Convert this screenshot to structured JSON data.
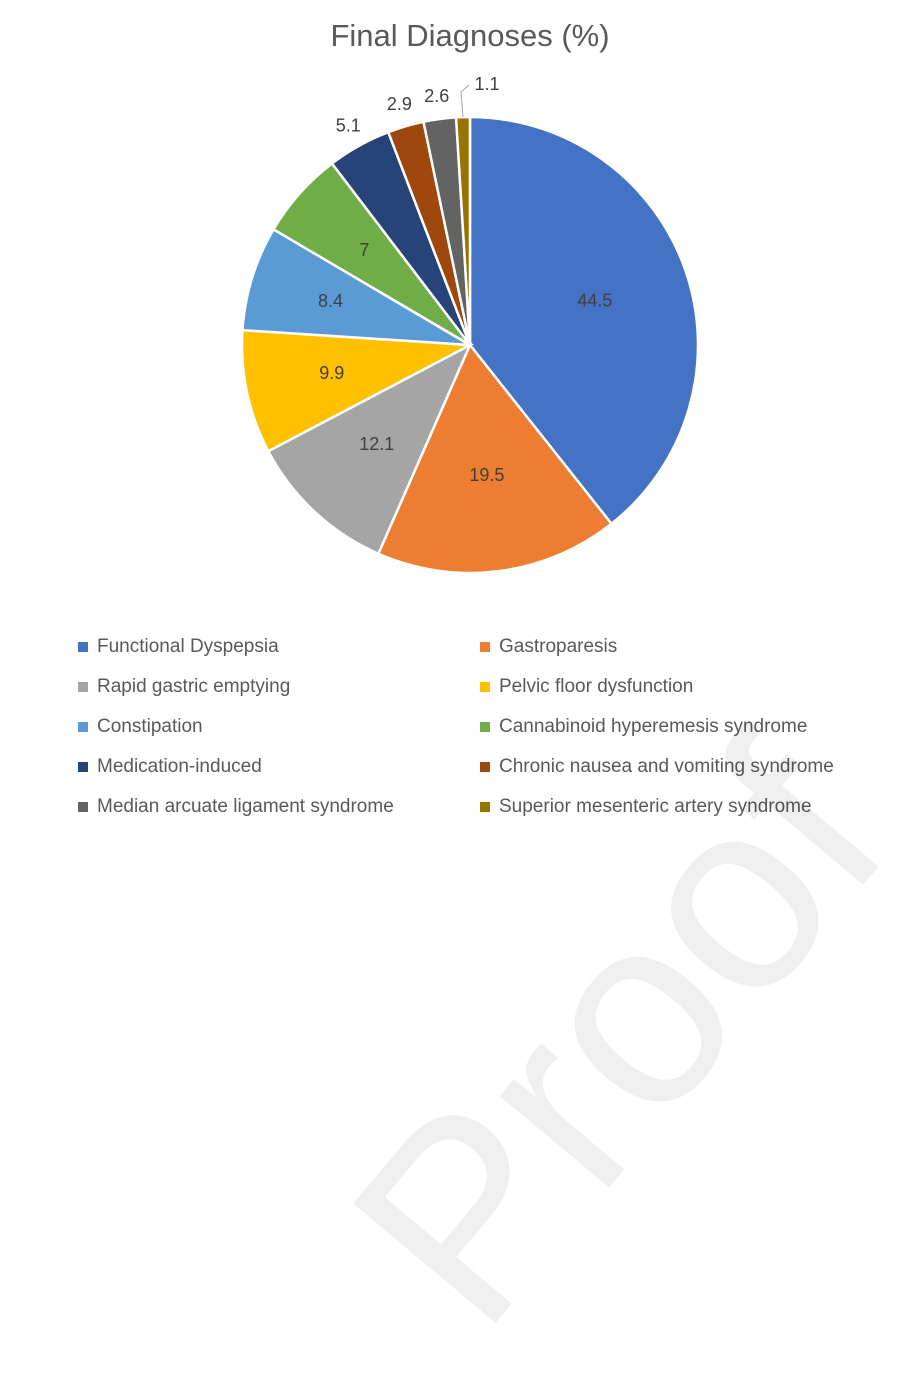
{
  "chart_data": {
    "type": "pie",
    "title": "Final Diagnoses (%)",
    "categories": [
      "Functional Dyspepsia",
      "Gastroparesis",
      "Rapid gastric emptying",
      "Pelvic floor dysfunction",
      "Constipation",
      "Cannabinoid hyperemesis syndrome",
      "Medication-induced",
      "Chronic nausea and vomiting syndrome",
      "Median arcuate ligament syndrome",
      "Superior mesenteric artery syndrome"
    ],
    "values": [
      44.5,
      19.5,
      12.1,
      9.9,
      8.4,
      7,
      5.1,
      2.9,
      2.6,
      1.1
    ],
    "labels": [
      "44.5",
      "19.5",
      "12.1",
      "9.9",
      "8.4",
      "7",
      "5.1",
      "2.9",
      "2.6",
      "1.1"
    ],
    "colors": [
      "#4472C4",
      "#ED7D31",
      "#A5A5A5",
      "#FFC000",
      "#5B9BD5",
      "#70AD47",
      "#264478",
      "#9E480E",
      "#636363",
      "#997300"
    ],
    "legend": "bottom"
  },
  "watermark": "Proof"
}
